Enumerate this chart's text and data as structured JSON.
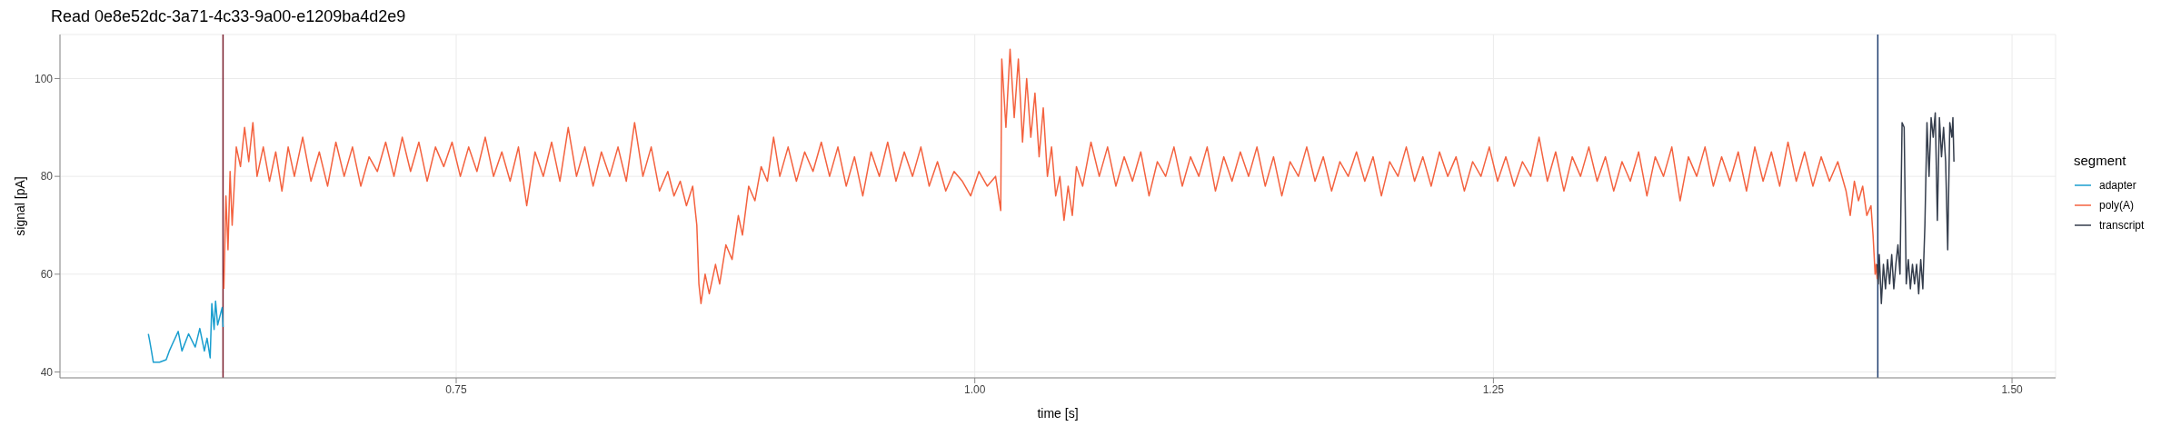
{
  "chart_data": {
    "type": "line",
    "title": "Read 0e8e52dc-3a71-4c33-9a00-e1209ba4d2e9",
    "xlabel": "time [s]",
    "ylabel": "signal [pA]",
    "legend_title": "segment",
    "legend": "right",
    "grid": true,
    "xlim": [
      0.559,
      1.521
    ],
    "ylim": [
      38.8,
      109
    ],
    "xticks": [
      0.75,
      {
        "value": 1,
        "label": "1.00"
      },
      1.25,
      {
        "value": 1.5,
        "label": "1.50"
      }
    ],
    "yticks": [
      40,
      60,
      80,
      100
    ],
    "ref_lines": [
      {
        "axis": "x",
        "value": 0.6376,
        "color": "#7b1f2e"
      },
      {
        "axis": "x",
        "value": 1.4353,
        "color": "#1f3c6e"
      }
    ],
    "series": [
      {
        "name": "adapter",
        "color": "#1a9ecf",
        "x": [
          0.6016,
          0.6022,
          0.6031,
          0.604,
          0.607,
          0.6102,
          0.6117,
          0.6135,
          0.616,
          0.6178,
          0.621,
          0.6242,
          0.6264,
          0.6286,
          0.6299,
          0.6314,
          0.6322,
          0.6333,
          0.634,
          0.635,
          0.6361,
          0.6372,
          0.6376
        ],
        "values": [
          47.8,
          46.5,
          44.3,
          42,
          42,
          42.5,
          44.3,
          46,
          48.3,
          44.3,
          47.8,
          45.1,
          48.9,
          44.3,
          46.9,
          42.9,
          54,
          48.7,
          54.5,
          49.6,
          51.4,
          53.2,
          49.2
        ]
      },
      {
        "name": "poly(A)",
        "color": "#f4623f",
        "x": [
          0.638,
          0.639,
          0.64,
          0.641,
          0.642,
          0.644,
          0.646,
          0.648,
          0.65,
          0.652,
          0.654,
          0.657,
          0.66,
          0.663,
          0.666,
          0.669,
          0.672,
          0.676,
          0.68,
          0.684,
          0.688,
          0.692,
          0.696,
          0.7,
          0.704,
          0.708,
          0.712,
          0.716,
          0.72,
          0.724,
          0.728,
          0.732,
          0.736,
          0.74,
          0.744,
          0.748,
          0.752,
          0.756,
          0.76,
          0.764,
          0.768,
          0.772,
          0.776,
          0.78,
          0.784,
          0.788,
          0.792,
          0.796,
          0.8,
          0.804,
          0.808,
          0.812,
          0.816,
          0.82,
          0.824,
          0.828,
          0.832,
          0.836,
          0.84,
          0.844,
          0.848,
          0.852,
          0.855,
          0.858,
          0.861,
          0.864,
          0.866,
          0.867,
          0.868,
          0.87,
          0.872,
          0.875,
          0.877,
          0.88,
          0.883,
          0.886,
          0.888,
          0.891,
          0.894,
          0.897,
          0.9,
          0.903,
          0.906,
          0.91,
          0.914,
          0.918,
          0.922,
          0.926,
          0.93,
          0.934,
          0.938,
          0.942,
          0.946,
          0.95,
          0.954,
          0.958,
          0.962,
          0.966,
          0.97,
          0.974,
          0.978,
          0.982,
          0.986,
          0.99,
          0.994,
          0.998,
          1.002,
          1.006,
          1.01,
          1.0125,
          1.013,
          1.015,
          1.017,
          1.019,
          1.021,
          1.023,
          1.025,
          1.027,
          1.029,
          1.031,
          1.033,
          1.035,
          1.037,
          1.039,
          1.041,
          1.043,
          1.045,
          1.047,
          1.049,
          1.052,
          1.056,
          1.06,
          1.064,
          1.068,
          1.072,
          1.076,
          1.08,
          1.084,
          1.088,
          1.092,
          1.096,
          1.1,
          1.104,
          1.108,
          1.112,
          1.116,
          1.12,
          1.124,
          1.128,
          1.132,
          1.136,
          1.14,
          1.144,
          1.148,
          1.152,
          1.156,
          1.16,
          1.164,
          1.168,
          1.172,
          1.176,
          1.18,
          1.184,
          1.188,
          1.192,
          1.196,
          1.2,
          1.204,
          1.208,
          1.212,
          1.216,
          1.22,
          1.224,
          1.228,
          1.232,
          1.236,
          1.24,
          1.244,
          1.248,
          1.252,
          1.256,
          1.26,
          1.264,
          1.268,
          1.272,
          1.276,
          1.28,
          1.284,
          1.288,
          1.292,
          1.296,
          1.3,
          1.304,
          1.308,
          1.312,
          1.316,
          1.32,
          1.324,
          1.328,
          1.332,
          1.336,
          1.34,
          1.344,
          1.348,
          1.352,
          1.356,
          1.36,
          1.364,
          1.368,
          1.372,
          1.376,
          1.38,
          1.384,
          1.388,
          1.392,
          1.396,
          1.4,
          1.404,
          1.408,
          1.412,
          1.416,
          1.42,
          1.422,
          1.424,
          1.426,
          1.428,
          1.43,
          1.432,
          1.433,
          1.434,
          1.4345,
          1.435
        ],
        "values": [
          57,
          76,
          65,
          81,
          70,
          86,
          82,
          90,
          83,
          91,
          80,
          86,
          79,
          85,
          77,
          86,
          80,
          88,
          79,
          85,
          78,
          87,
          80,
          86,
          78,
          84,
          81,
          87,
          80,
          88,
          81,
          87,
          79,
          86,
          82,
          87,
          80,
          86,
          81,
          88,
          80,
          85,
          79,
          86,
          74,
          85,
          80,
          87,
          79,
          90,
          80,
          86,
          78,
          85,
          80,
          86,
          79,
          91,
          80,
          86,
          77,
          81,
          76,
          79,
          74,
          78,
          70,
          58,
          54,
          60,
          56,
          62,
          58,
          66,
          63,
          72,
          68,
          78,
          75,
          82,
          79,
          88,
          80,
          86,
          79,
          85,
          81,
          87,
          80,
          86,
          78,
          84,
          76,
          85,
          80,
          87,
          79,
          85,
          80,
          86,
          78,
          83,
          77,
          81,
          79,
          76,
          81,
          78,
          80,
          73,
          104,
          90,
          106,
          92,
          104,
          87,
          100,
          88,
          97,
          84,
          94,
          80,
          86,
          76,
          80,
          71,
          78,
          72,
          82,
          78,
          87,
          80,
          86,
          78,
          84,
          79,
          85,
          76,
          83,
          80,
          86,
          78,
          84,
          80,
          86,
          77,
          84,
          79,
          85,
          80,
          86,
          78,
          84,
          76,
          83,
          80,
          86,
          79,
          84,
          77,
          83,
          80,
          85,
          79,
          84,
          76,
          83,
          80,
          86,
          79,
          84,
          78,
          85,
          80,
          84,
          77,
          83,
          80,
          86,
          79,
          84,
          78,
          83,
          80,
          88,
          79,
          85,
          77,
          84,
          80,
          86,
          79,
          84,
          77,
          83,
          79,
          85,
          76,
          84,
          80,
          86,
          75,
          84,
          80,
          86,
          78,
          84,
          79,
          85,
          77,
          86,
          79,
          85,
          78,
          87,
          79,
          85,
          78,
          84,
          79,
          83,
          77,
          72,
          79,
          75,
          78,
          72,
          74,
          68,
          60,
          62,
          59
        ]
      },
      {
        "name": "transcript",
        "color": "#343d4c",
        "x": [
          1.435,
          1.4355,
          1.436,
          1.437,
          1.438,
          1.439,
          1.44,
          1.441,
          1.442,
          1.443,
          1.444,
          1.445,
          1.446,
          1.447,
          1.448,
          1.449,
          1.45,
          1.451,
          1.452,
          1.453,
          1.454,
          1.455,
          1.456,
          1.457,
          1.458,
          1.459,
          1.46,
          1.461,
          1.462,
          1.463,
          1.464,
          1.465,
          1.466,
          1.467,
          1.468,
          1.469,
          1.47,
          1.471,
          1.4715,
          1.472
        ],
        "values": [
          62,
          58,
          64,
          54,
          62,
          57,
          63,
          58,
          64,
          57,
          62,
          66,
          60,
          91,
          90,
          58,
          63,
          57,
          62,
          58,
          62,
          56,
          63,
          57,
          70,
          91,
          80,
          92,
          88,
          93,
          71,
          92,
          84,
          90,
          83,
          65,
          91,
          88,
          92,
          83
        ]
      }
    ]
  }
}
